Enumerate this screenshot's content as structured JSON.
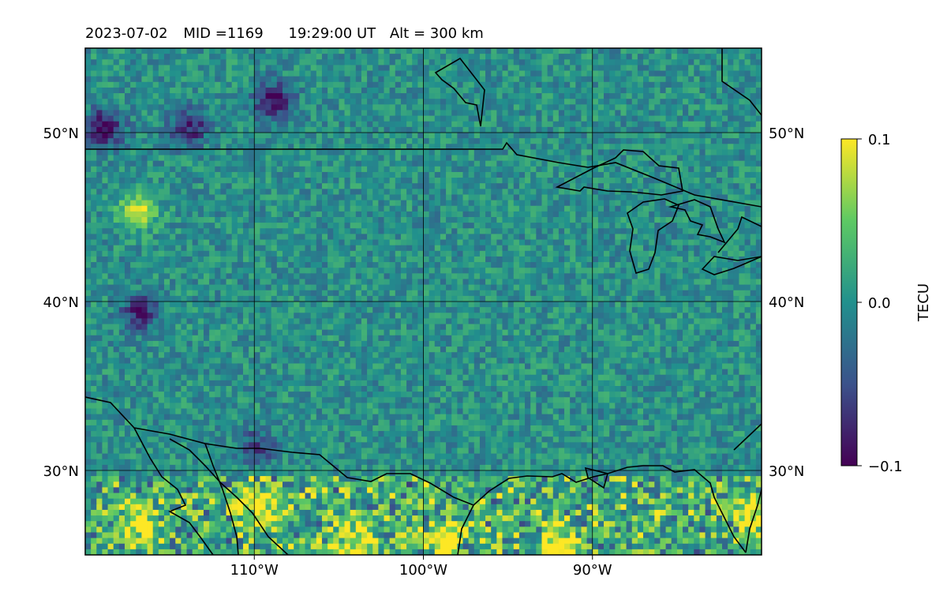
{
  "title": {
    "date": "2023-07-02",
    "mid": "MID =1169",
    "time": "19:29:00  UT",
    "alt": "Alt = 300 km"
  },
  "chart_data": {
    "type": "heatmap",
    "title": "2023-07-02  MID =1169    19:29:00  UT  Alt = 300 km",
    "xlabel": "",
    "ylabel": "",
    "xlim": [
      -120,
      -80
    ],
    "ylim": [
      25,
      55
    ],
    "x_ticks": [
      {
        "value": -110,
        "label": "110°W"
      },
      {
        "value": -100,
        "label": "100°W"
      },
      {
        "value": -90,
        "label": "90°W"
      }
    ],
    "y_ticks": [
      {
        "value": 30,
        "label": "30°N"
      },
      {
        "value": 40,
        "label": "40°N"
      },
      {
        "value": 50,
        "label": "50°N"
      }
    ],
    "grid": true,
    "colormap": "viridis",
    "colorbar": {
      "label": "TECU",
      "min": -0.1,
      "max": 0.1,
      "ticks": [
        {
          "value": 0.1,
          "label": "0.1"
        },
        {
          "value": 0.0,
          "label": "0.0"
        },
        {
          "value": -0.1,
          "label": "−0.1"
        }
      ]
    },
    "field_summary": {
      "background_mean": 0.0,
      "hotspots_high": [
        {
          "lon": -117,
          "lat": 27,
          "value": 0.1
        },
        {
          "lon": -110,
          "lat": 28,
          "value": 0.1
        },
        {
          "lon": -104,
          "lat": 26,
          "value": 0.1
        },
        {
          "lon": -99,
          "lat": 26,
          "value": 0.1
        },
        {
          "lon": -92,
          "lat": 25.5,
          "value": 0.1
        },
        {
          "lon": -117,
          "lat": 45.5,
          "value": 0.08
        },
        {
          "lon": -80.5,
          "lat": 27.5,
          "value": 0.1
        }
      ],
      "hotspots_low": [
        {
          "lon": -109,
          "lat": 52,
          "value": -0.1
        },
        {
          "lon": -119,
          "lat": 50.5,
          "value": -0.1
        },
        {
          "lon": -114,
          "lat": 50.5,
          "value": -0.08
        },
        {
          "lon": -117,
          "lat": 39.5,
          "value": -0.08
        },
        {
          "lon": -110,
          "lat": 31.5,
          "value": -0.06
        }
      ]
    }
  }
}
